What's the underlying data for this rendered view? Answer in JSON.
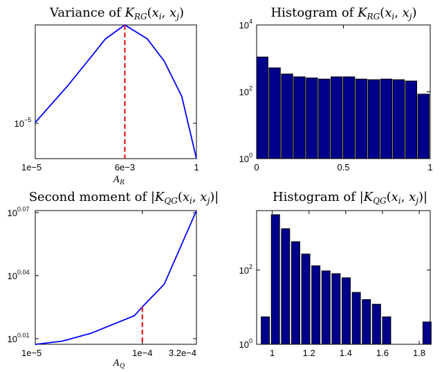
{
  "chart_data": [
    {
      "type": "line",
      "title": "Variance of K_RG(x_i, x_j)",
      "xlabel": "A_R",
      "ylabel": "",
      "x_scale": "log",
      "y_scale": "log",
      "xlim": [
        1e-05,
        1
      ],
      "ylim": [
        1.4e-06,
        0.0024
      ],
      "x_ticks": [
        {
          "value": 1e-05,
          "label": "1e−5"
        },
        {
          "value": 0.006,
          "label": "6e−3"
        },
        {
          "value": 1,
          "label": "1"
        }
      ],
      "y_ticks": [
        {
          "value": 1e-05,
          "base": "10",
          "exp": "−5"
        }
      ],
      "series": [
        {
          "color": "#0000ff",
          "x": [
            1e-05,
            0.0001,
            0.0006,
            0.0015,
            0.006,
            0.03,
            0.1,
            0.35,
            1
          ],
          "y": [
            1.05e-05,
            8e-05,
            0.00045,
            0.0011,
            0.0024,
            0.0011,
            0.00032,
            4.5e-05,
            1.4e-06
          ]
        }
      ],
      "marker_line": {
        "x": 0.006,
        "color": "#e31a1c",
        "style": "dashed"
      },
      "grid": false
    },
    {
      "type": "bar",
      "title": "Histogram of K_RG(x_i, x_j)",
      "xlabel": "",
      "ylabel": "",
      "y_scale": "log",
      "xlim": [
        0,
        1
      ],
      "ylim": [
        1,
        10000
      ],
      "x_ticks": [
        {
          "value": 0,
          "label": "0"
        },
        {
          "value": 0.5,
          "label": "0.5"
        },
        {
          "value": 1,
          "label": "1"
        }
      ],
      "y_ticks": [
        {
          "value": 1,
          "base": "10",
          "exp": "0"
        },
        {
          "value": 100,
          "base": "10",
          "exp": "2"
        },
        {
          "value": 10000,
          "base": "10",
          "exp": "4"
        }
      ],
      "bar_color": "#00008b",
      "bin_width": 0.0652,
      "x": [
        0.0,
        0.0714,
        0.1429,
        0.2143,
        0.2857,
        0.3571,
        0.4286,
        0.5,
        0.5714,
        0.6429,
        0.7143,
        0.7857,
        0.8571,
        0.9286
      ],
      "values": [
        1100,
        520,
        340,
        280,
        260,
        240,
        280,
        280,
        240,
        230,
        240,
        230,
        210,
        85
      ],
      "grid": false
    },
    {
      "type": "line",
      "title": "Second moment of |K_QG(x_i, x_j)|",
      "xlabel": "A_Q",
      "ylabel": "",
      "x_scale": "log",
      "y_scale": "log",
      "xlim": [
        1e-05,
        0.00032
      ],
      "ylim": [
        1.017,
        1.1775
      ],
      "x_ticks": [
        {
          "value": 1e-05,
          "label": "1e−5"
        },
        {
          "value": 0.0001,
          "label": "1e−4"
        },
        {
          "value": 0.00032,
          "label": "3.2e−4"
        }
      ],
      "y_ticks": [
        {
          "value": 1.0233,
          "base": "10",
          "exp": "0.01"
        },
        {
          "value": 1.0965,
          "base": "10",
          "exp": "0.04"
        },
        {
          "value": 1.1749,
          "base": "10",
          "exp": "0.07"
        }
      ],
      "series": [
        {
          "color": "#0000ff",
          "x": [
            1e-05,
            1.8e-05,
            3.3e-05,
            8.4e-05,
            0.0001,
            0.00016,
            0.00032
          ],
          "y": [
            1.0169,
            1.0206,
            1.0293,
            1.0493,
            1.0596,
            1.0862,
            1.1775
          ]
        }
      ],
      "marker_line": {
        "x": 0.0001,
        "color": "#e31a1c",
        "style": "dashed"
      },
      "grid": false
    },
    {
      "type": "bar",
      "title": "Histogram of |K_QG(x_i, x_j)|",
      "xlabel": "",
      "ylabel": "",
      "y_scale": "log",
      "xlim": [
        0.915,
        1.86
      ],
      "ylim": [
        1,
        4000
      ],
      "x_ticks": [
        {
          "value": 1,
          "label": "1"
        },
        {
          "value": 1.2,
          "label": "1.2"
        },
        {
          "value": 1.4,
          "label": "1.4"
        },
        {
          "value": 1.6,
          "label": "1.6"
        },
        {
          "value": 1.8,
          "label": "1.8"
        }
      ],
      "y_ticks": [
        {
          "value": 1,
          "base": "10",
          "exp": "0"
        },
        {
          "value": 100,
          "base": "10",
          "exp": "2"
        }
      ],
      "bar_color": "#00008b",
      "bin_width": 0.045,
      "x": [
        0.94,
        0.995,
        1.05,
        1.105,
        1.16,
        1.215,
        1.27,
        1.325,
        1.38,
        1.435,
        1.49,
        1.545,
        1.6,
        1.655,
        1.71,
        1.765,
        1.82
      ],
      "values": [
        5.5,
        3100,
        1300,
        580,
        270,
        130,
        95,
        80,
        62,
        25,
        16,
        12,
        5.5,
        1,
        1,
        1,
        4
      ],
      "grid": false
    }
  ]
}
